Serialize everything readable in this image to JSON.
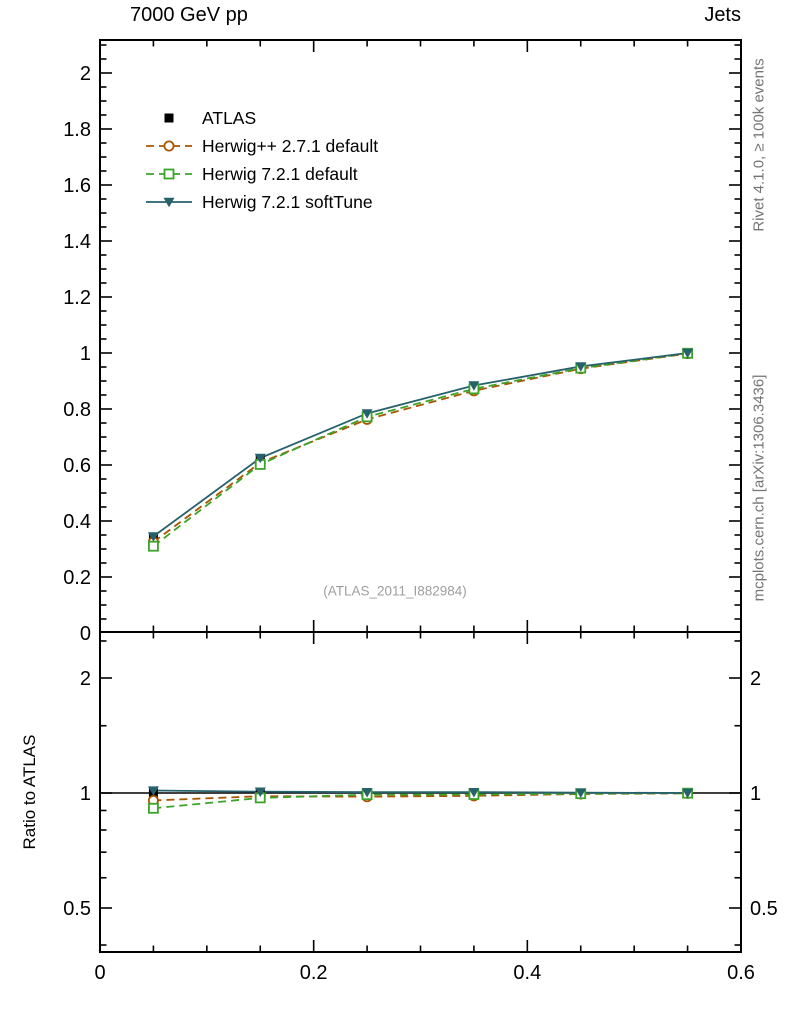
{
  "header": {
    "title_left": "7000 GeV pp",
    "title_right": "Jets"
  },
  "side": {
    "top": "Rivet 4.1.0, ≥ 100k events",
    "bottom": "mcplots.cern.ch [arXiv:1306.3436]"
  },
  "labels": {
    "ratio": "Ratio to ATLAS",
    "watermark": "(ATLAS_2011_I882984)"
  },
  "chart_data": {
    "type": "line",
    "x": [
      0.05,
      0.15,
      0.25,
      0.35,
      0.45,
      0.55
    ],
    "xlim": [
      0,
      0.6
    ],
    "x_ticks": [
      0,
      0.2,
      0.4,
      0.6
    ],
    "x_minor_step": 0.05,
    "main": {
      "ylim": [
        0,
        2.118
      ],
      "yticks": [
        0,
        0.2,
        0.4,
        0.6,
        0.8,
        1,
        1.2,
        1.4,
        1.6,
        1.8,
        2
      ],
      "y_minor_step": 0.05
    },
    "ratio": {
      "scale": "log",
      "ylim": [
        0.38,
        2.64
      ],
      "yticks": [
        0.5,
        1,
        2
      ],
      "yticks_minor": [
        0.4,
        0.6,
        0.7,
        0.8,
        0.9,
        1.5,
        2.5
      ],
      "reference": 1
    },
    "legend_position": "top-left",
    "series": [
      {
        "name": "ATLAS",
        "color": "#000000",
        "marker": "square-filled",
        "line": "none",
        "values": [
          0.34,
          0.62,
          0.78,
          0.88,
          0.95,
          1.0
        ],
        "ratio": [
          1,
          1,
          1,
          1,
          1,
          1
        ]
      },
      {
        "name": "Herwig++ 2.7.1 default",
        "color": "#aa5500",
        "marker": "circle-open",
        "line": "dashed",
        "values": [
          0.325,
          0.608,
          0.763,
          0.865,
          0.944,
          0.998
        ],
        "ratio": [
          0.956,
          0.981,
          0.978,
          0.983,
          0.994,
          0.998
        ]
      },
      {
        "name": "Herwig 7.2.1 default",
        "color": "#3ba428",
        "marker": "square-open",
        "line": "dashed",
        "values": [
          0.31,
          0.602,
          0.772,
          0.872,
          0.946,
          0.999
        ],
        "ratio": [
          0.912,
          0.971,
          0.99,
          0.991,
          0.996,
          0.999
        ]
      },
      {
        "name": "Herwig 7.2.1 softTune",
        "color": "#26616c",
        "marker": "triangle-down-filled",
        "line": "solid",
        "values": [
          0.345,
          0.625,
          0.784,
          0.884,
          0.952,
          1.0
        ],
        "ratio": [
          1.015,
          1.008,
          1.005,
          1.005,
          1.002,
          1.0
        ]
      }
    ]
  }
}
